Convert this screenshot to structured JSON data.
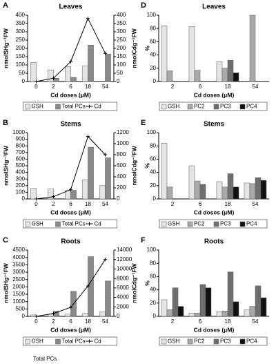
{
  "chart_data": [
    {
      "type": "bar",
      "letter": "A",
      "title": "Leaves",
      "x_label": "Cd doses (μM)",
      "y_label": "nmolSHg⁻¹FW",
      "y2_label": "nmolCdg⁻¹FW",
      "categories": [
        "0",
        "2",
        "6",
        "18",
        "54"
      ],
      "ylim": [
        0,
        400
      ],
      "yticks": [
        0,
        50,
        100,
        150,
        200,
        250,
        300,
        350,
        400
      ],
      "y2lim": [
        0,
        400
      ],
      "y2ticks": [
        0,
        50,
        100,
        150,
        200,
        250,
        300,
        350,
        400
      ],
      "series": [
        {
          "name": "GSH",
          "type": "bar",
          "color": "#e4e4e4",
          "values": [
            115,
            70,
            90,
            95,
            null
          ]
        },
        {
          "name": "Total PCs",
          "type": "bar",
          "color": "#8a8a8a",
          "values": [
            null,
            20,
            25,
            220,
            165
          ]
        },
        {
          "name": "Cd",
          "type": "line",
          "axis": "y2",
          "color": "#000000",
          "values": [
            0,
            20,
            120,
            380,
            170
          ]
        }
      ]
    },
    {
      "type": "bar",
      "letter": "B",
      "title": "Stems",
      "x_label": "Cd doses (μM)",
      "y_label": "nmolSHg⁻¹FW",
      "y2_label": "nmolCdg⁻¹FW",
      "categories": [
        "0",
        "2",
        "6",
        "18",
        "54"
      ],
      "ylim": [
        0,
        1000
      ],
      "yticks": [
        0,
        100,
        200,
        300,
        400,
        500,
        600,
        700,
        800,
        900,
        1000
      ],
      "y2lim": [
        0,
        1200
      ],
      "y2ticks": [
        0,
        200,
        400,
        600,
        800,
        1000,
        1200
      ],
      "series": [
        {
          "name": "GSH",
          "type": "bar",
          "color": "#e4e4e4",
          "values": [
            160,
            150,
            130,
            290,
            200
          ]
        },
        {
          "name": "Total PCs",
          "type": "bar",
          "color": "#8a8a8a",
          "values": [
            null,
            null,
            130,
            780,
            620
          ]
        },
        {
          "name": "Cd",
          "type": "line",
          "axis": "y2",
          "color": "#000000",
          "values": [
            0,
            40,
            170,
            1130,
            800
          ]
        }
      ]
    },
    {
      "type": "bar",
      "letter": "C",
      "title": "Roots",
      "x_label": "Cd doses (μM)",
      "y_label": "nmolSHg⁻¹FW",
      "y2_label": "nmolCdg⁻¹FW",
      "categories": [
        "0",
        "2",
        "6",
        "18",
        "54"
      ],
      "ylim": [
        0,
        4500
      ],
      "yticks": [
        0,
        500,
        1000,
        1500,
        2000,
        2500,
        3000,
        3500,
        4000,
        4500
      ],
      "y2lim": [
        0,
        14000
      ],
      "y2ticks": [
        0,
        2000,
        4000,
        6000,
        8000,
        10000,
        12000,
        14000
      ],
      "series": [
        {
          "name": "GSH",
          "type": "bar",
          "color": "#e4e4e4",
          "values": [
            100,
            150,
            150,
            200,
            300
          ]
        },
        {
          "name": "Total PCs",
          "type": "bar",
          "color": "#8a8a8a",
          "values": [
            null,
            350,
            1700,
            4050,
            2400
          ]
        },
        {
          "name": "Cd",
          "type": "line",
          "axis": "y2",
          "color": "#000000",
          "values": [
            0,
            600,
            1900,
            6400,
            12000
          ]
        }
      ]
    },
    {
      "type": "bar",
      "letter": "D",
      "title": "Leaves",
      "x_label": "Cd doses (μM)",
      "y_label": "%",
      "categories": [
        "2",
        "6",
        "18",
        "54"
      ],
      "ylim": [
        0,
        100
      ],
      "yticks": [
        0,
        20,
        40,
        60,
        80,
        100
      ],
      "series": [
        {
          "name": "GSH",
          "type": "bar",
          "color": "#e4e4e4",
          "values": [
            84,
            83,
            30,
            null
          ]
        },
        {
          "name": "PC2",
          "type": "bar",
          "color": "#aaaaaa",
          "values": [
            16,
            17,
            20,
            100
          ]
        },
        {
          "name": "PC3",
          "type": "bar",
          "color": "#6e6e6e",
          "values": [
            null,
            null,
            32,
            null
          ]
        },
        {
          "name": "PC4",
          "type": "bar",
          "color": "#111111",
          "values": [
            null,
            null,
            13,
            null
          ]
        }
      ]
    },
    {
      "type": "bar",
      "letter": "E",
      "title": "Stems",
      "x_label": "Cd doses (μM)",
      "y_label": "%",
      "categories": [
        "2",
        "6",
        "18",
        "54"
      ],
      "ylim": [
        0,
        100
      ],
      "yticks": [
        0,
        20,
        40,
        60,
        80,
        100
      ],
      "series": [
        {
          "name": "GSH",
          "type": "bar",
          "color": "#e4e4e4",
          "values": [
            84,
            50,
            26,
            24
          ]
        },
        {
          "name": "PC2",
          "type": "bar",
          "color": "#aaaaaa",
          "values": [
            18,
            27,
            18,
            23
          ]
        },
        {
          "name": "PC3",
          "type": "bar",
          "color": "#6e6e6e",
          "values": [
            null,
            22,
            38,
            32
          ]
        },
        {
          "name": "PC4",
          "type": "bar",
          "color": "#111111",
          "values": [
            null,
            null,
            18,
            28
          ]
        }
      ]
    },
    {
      "type": "bar",
      "letter": "F",
      "title": "Roots",
      "x_label": "Cd doses (μM)",
      "y_label": "%",
      "categories": [
        "2",
        "6",
        "18",
        "54"
      ],
      "ylim": [
        0,
        100
      ],
      "yticks": [
        0,
        20,
        40,
        60,
        80,
        100
      ],
      "series": [
        {
          "name": "GSH",
          "type": "bar",
          "color": "#e4e4e4",
          "values": [
            25,
            5,
            7,
            10
          ]
        },
        {
          "name": "PC2",
          "type": "bar",
          "color": "#aaaaaa",
          "values": [
            10,
            5,
            8,
            15
          ]
        },
        {
          "name": "PC3",
          "type": "bar",
          "color": "#6e6e6e",
          "values": [
            43,
            48,
            67,
            46
          ]
        },
        {
          "name": "PC4",
          "type": "bar",
          "color": "#111111",
          "values": [
            15,
            43,
            22,
            28
          ]
        }
      ]
    }
  ],
  "footer": "Total PCs"
}
